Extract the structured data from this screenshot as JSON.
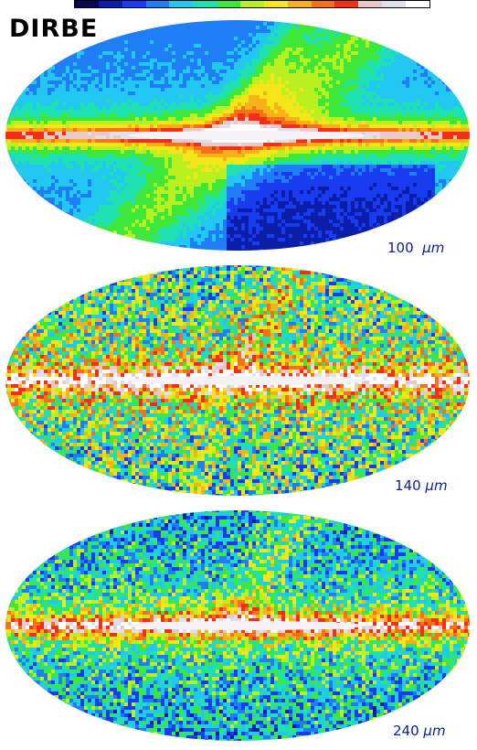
{
  "title": "DIRBE",
  "colorbar": {
    "colors": [
      "#060a52",
      "#0a1ea8",
      "#1a3cf0",
      "#1f7ef5",
      "#22c8f0",
      "#1ee0b0",
      "#3ee83a",
      "#b8f020",
      "#f5e61a",
      "#f7b21a",
      "#f5721a",
      "#f2301a",
      "#e8c8c8",
      "#e0e0ea",
      "#ffffff"
    ]
  },
  "maps": [
    {
      "band": "100",
      "unit": "μm",
      "noise": 0.03,
      "background": 0.22
    },
    {
      "band": "140",
      "unit": "μm",
      "noise": 0.25,
      "background": 0.38
    },
    {
      "band": "240",
      "unit": "μm",
      "noise": 0.18,
      "background": 0.28
    }
  ]
}
